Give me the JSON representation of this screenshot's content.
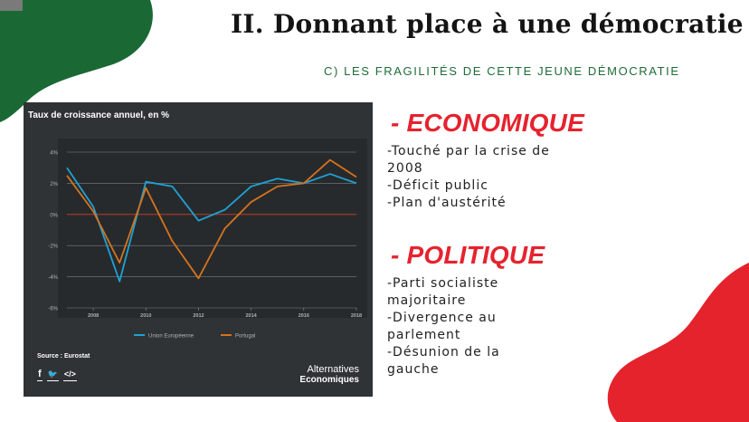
{
  "slide": {
    "title": "II. Donnant place à une démocratie",
    "subtitle": "C) LES FRAGILITÉS DE CETTE JEUNE DÉMOCRATIE",
    "colors": {
      "green": "#1f6b38",
      "red": "#e5232e",
      "chart_bg": "#2f3336"
    }
  },
  "economique": {
    "heading": "- ECONOMIQUE",
    "items": [
      "-Touché par la crise de",
      "2008",
      "-Déficit public",
      "-Plan d'austérité"
    ]
  },
  "politique": {
    "heading": "- POLITIQUE",
    "items": [
      "-Parti socialiste",
      "majoritaire",
      "-Divergence au",
      "parlement",
      "-Désunion de la",
      "gauche"
    ]
  },
  "chart_panel": {
    "title": "Taux de croissance annuel, en %",
    "source": "Source : Eurostat",
    "brand_line1": "Alternatives",
    "brand_line2": "Economiques",
    "social_icons": [
      "facebook-icon",
      "twitter-icon",
      "embed-code-icon"
    ],
    "social_glyphs": [
      "f",
      "🐦",
      "</>"
    ]
  },
  "chart_data": {
    "type": "line",
    "title": "Taux de croissance annuel, en %",
    "x": [
      2007,
      2008,
      2009,
      2010,
      2011,
      2012,
      2013,
      2014,
      2015,
      2016,
      2017,
      2018
    ],
    "x_tick_labels": [
      "2008",
      "2010",
      "2012",
      "2014",
      "2016",
      "2018"
    ],
    "x_ticks": [
      2008,
      2010,
      2012,
      2014,
      2016,
      2018
    ],
    "y_tick_labels": [
      "4%",
      "2%",
      "0%",
      "-2%",
      "-4%",
      "-6%"
    ],
    "y_ticks": [
      4,
      2,
      0,
      -2,
      -4,
      -6
    ],
    "ylim": [
      -6,
      4
    ],
    "xlim": [
      2007,
      2018
    ],
    "grid": true,
    "legend_position": "bottom",
    "series": [
      {
        "name": "Union Européenne",
        "color": "#1ea2d4",
        "values": [
          3.0,
          0.5,
          -4.3,
          2.1,
          1.8,
          -0.4,
          0.3,
          1.8,
          2.3,
          2.0,
          2.6,
          2.0
        ]
      },
      {
        "name": "Portugal",
        "color": "#d5731e",
        "values": [
          2.5,
          0.2,
          -3.1,
          1.7,
          -1.7,
          -4.1,
          -0.9,
          0.8,
          1.8,
          2.0,
          3.5,
          2.4
        ]
      }
    ]
  }
}
